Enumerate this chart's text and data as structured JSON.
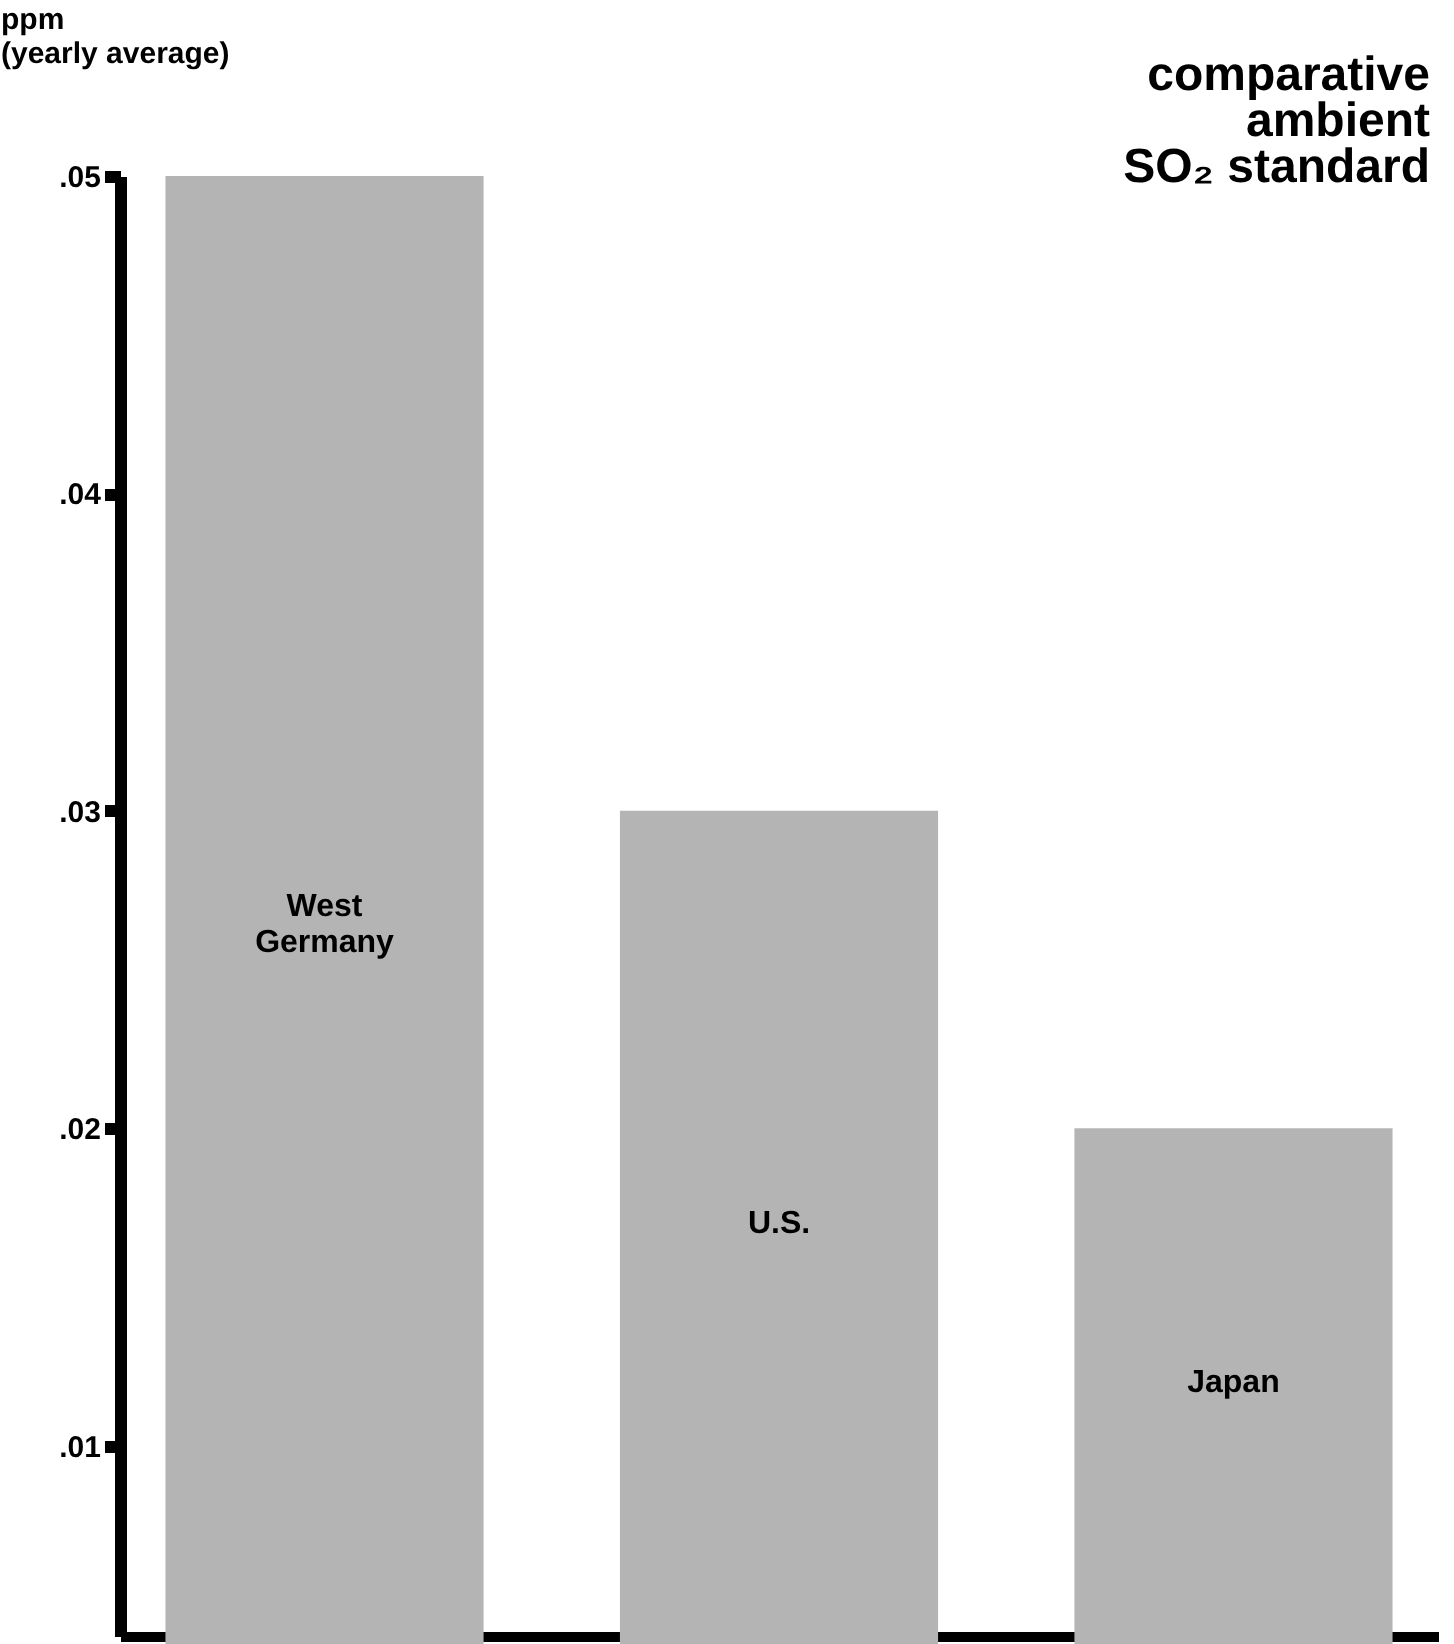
{
  "chart_data": {
    "type": "bar",
    "title": [
      "comparative",
      "ambient",
      "SO₂ standard"
    ],
    "ylabel": [
      "ppm",
      "(yearly average)"
    ],
    "categories": [
      "West Germany",
      "U.S.",
      "Japan"
    ],
    "values": [
      0.05,
      0.03,
      0.02
    ],
    "color": "#b4b4b4",
    "ylim": [
      0.004,
      0.05
    ],
    "yticks": [
      {
        "value": 0.01,
        "label": ".01"
      },
      {
        "value": 0.02,
        "label": ".02"
      },
      {
        "value": 0.03,
        "label": ".03"
      },
      {
        "value": 0.04,
        "label": ".04"
      },
      {
        "value": 0.05,
        "label": ".05"
      }
    ],
    "grid": false
  }
}
